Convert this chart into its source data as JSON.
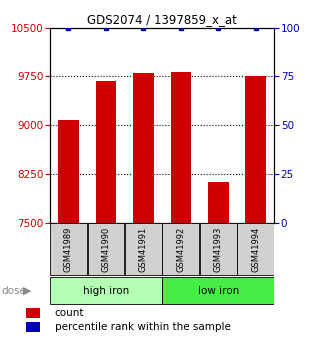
{
  "title": "GDS2074 / 1397859_x_at",
  "samples": [
    "GSM41989",
    "GSM41990",
    "GSM41991",
    "GSM41992",
    "GSM41993",
    "GSM41994"
  ],
  "counts": [
    9075,
    9680,
    9800,
    9820,
    8130,
    9760
  ],
  "percentile_ranks": [
    100,
    100,
    100,
    100,
    100,
    100
  ],
  "ylim_left": [
    7500,
    10500
  ],
  "ylim_right": [
    0,
    100
  ],
  "yticks_left": [
    7500,
    8250,
    9000,
    9750,
    10500
  ],
  "yticks_right": [
    0,
    25,
    50,
    75,
    100
  ],
  "bar_color": "#cc0000",
  "dot_color": "#0000bb",
  "groups": [
    {
      "label": "high iron",
      "bg_color": "#b3ffb3"
    },
    {
      "label": "low iron",
      "bg_color": "#44ee44"
    }
  ],
  "dose_label": "dose",
  "legend_count_label": "count",
  "legend_pct_label": "percentile rank within the sample",
  "left_label_color": "#cc0000",
  "right_label_color": "#0000bb"
}
